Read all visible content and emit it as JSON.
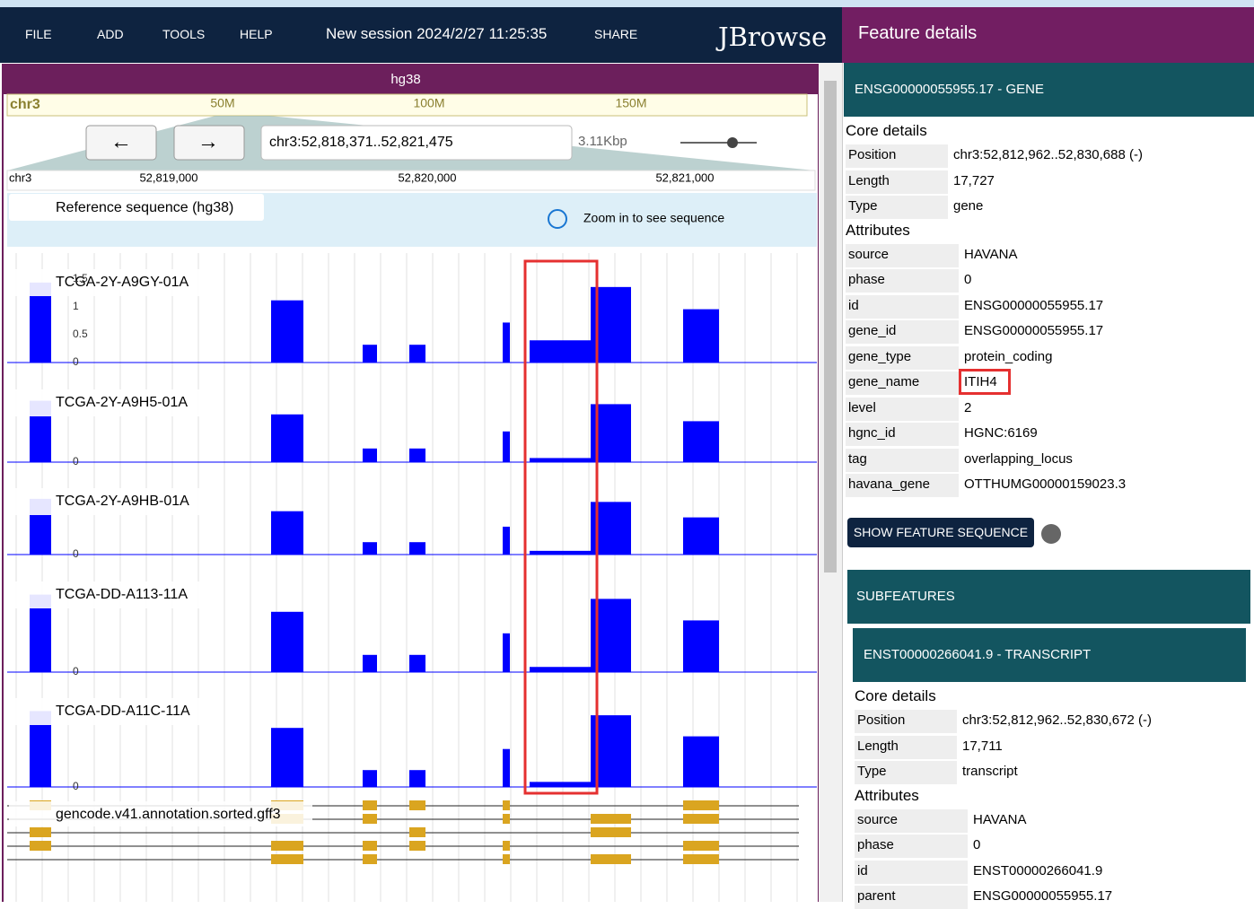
{
  "menu": {
    "items": [
      "FILE",
      "ADD",
      "TOOLS",
      "HELP"
    ],
    "session": "New session 2024/2/27 11:25:35",
    "share": "SHARE",
    "brand": "JBrowse"
  },
  "view": {
    "title": "hg38",
    "overview_chr": "chr3",
    "overview_ticks": [
      "50M",
      "100M",
      "150M"
    ],
    "location": "chr3:52,818,371..52,821,475",
    "span": "3.11Kbp",
    "ruler_chr": "chr3",
    "ruler_ticks": [
      "52,819,000",
      "52,820,000",
      "52,821,000"
    ],
    "reference_track": "Reference sequence (hg38)",
    "reference_message": "Zoom in to see sequence",
    "tracks": [
      {
        "name": "TCGA-2Y-A9GY-01A",
        "axis": [
          "1.5",
          "1",
          "0.5",
          "0"
        ]
      },
      {
        "name": "TCGA-2Y-A9H5-01A",
        "axis": [
          "0"
        ]
      },
      {
        "name": "TCGA-2Y-A9HB-01A",
        "axis": [
          "0"
        ]
      },
      {
        "name": "TCGA-DD-A113-11A",
        "axis": [
          "0"
        ]
      },
      {
        "name": "TCGA-DD-A11C-11A",
        "axis": [
          "0"
        ]
      }
    ],
    "annotation_track": "gencode.v41.annotation.sorted.gff3"
  },
  "panel": {
    "title": "Feature details",
    "gene": {
      "header": "ENSG00000055955.17 - GENE",
      "core_title": "Core details",
      "core": [
        [
          "Position",
          "chr3:52,812,962..52,830,688 (-)"
        ],
        [
          "Length",
          "17,727"
        ],
        [
          "Type",
          "gene"
        ]
      ],
      "attributes_title": "Attributes",
      "attributes": [
        [
          "source",
          "HAVANA"
        ],
        [
          "phase",
          "0"
        ],
        [
          "id",
          "ENSG00000055955.17"
        ],
        [
          "gene_id",
          "ENSG00000055955.17"
        ],
        [
          "gene_type",
          "protein_coding"
        ],
        [
          "gene_name",
          "ITIH4"
        ],
        [
          "level",
          "2"
        ],
        [
          "hgnc_id",
          "HGNC:6169"
        ],
        [
          "tag",
          "overlapping_locus"
        ],
        [
          "havana_gene",
          "OTTHUMG00000159023.3"
        ]
      ]
    },
    "button": "SHOW FEATURE SEQUENCE",
    "subfeatures": "SUBFEATURES",
    "transcript": {
      "header": "ENST00000266041.9 - TRANSCRIPT",
      "core_title": "Core details",
      "core": [
        [
          "Position",
          "chr3:52,812,962..52,830,672 (-)"
        ],
        [
          "Length",
          "17,711"
        ],
        [
          "Type",
          "transcript"
        ]
      ],
      "attributes_title": "Attributes",
      "attributes": [
        [
          "source",
          "HAVANA"
        ],
        [
          "phase",
          "0"
        ],
        [
          "id",
          "ENST00000266041.9"
        ],
        [
          "parent",
          "ENSG00000055955.17"
        ]
      ]
    }
  }
}
